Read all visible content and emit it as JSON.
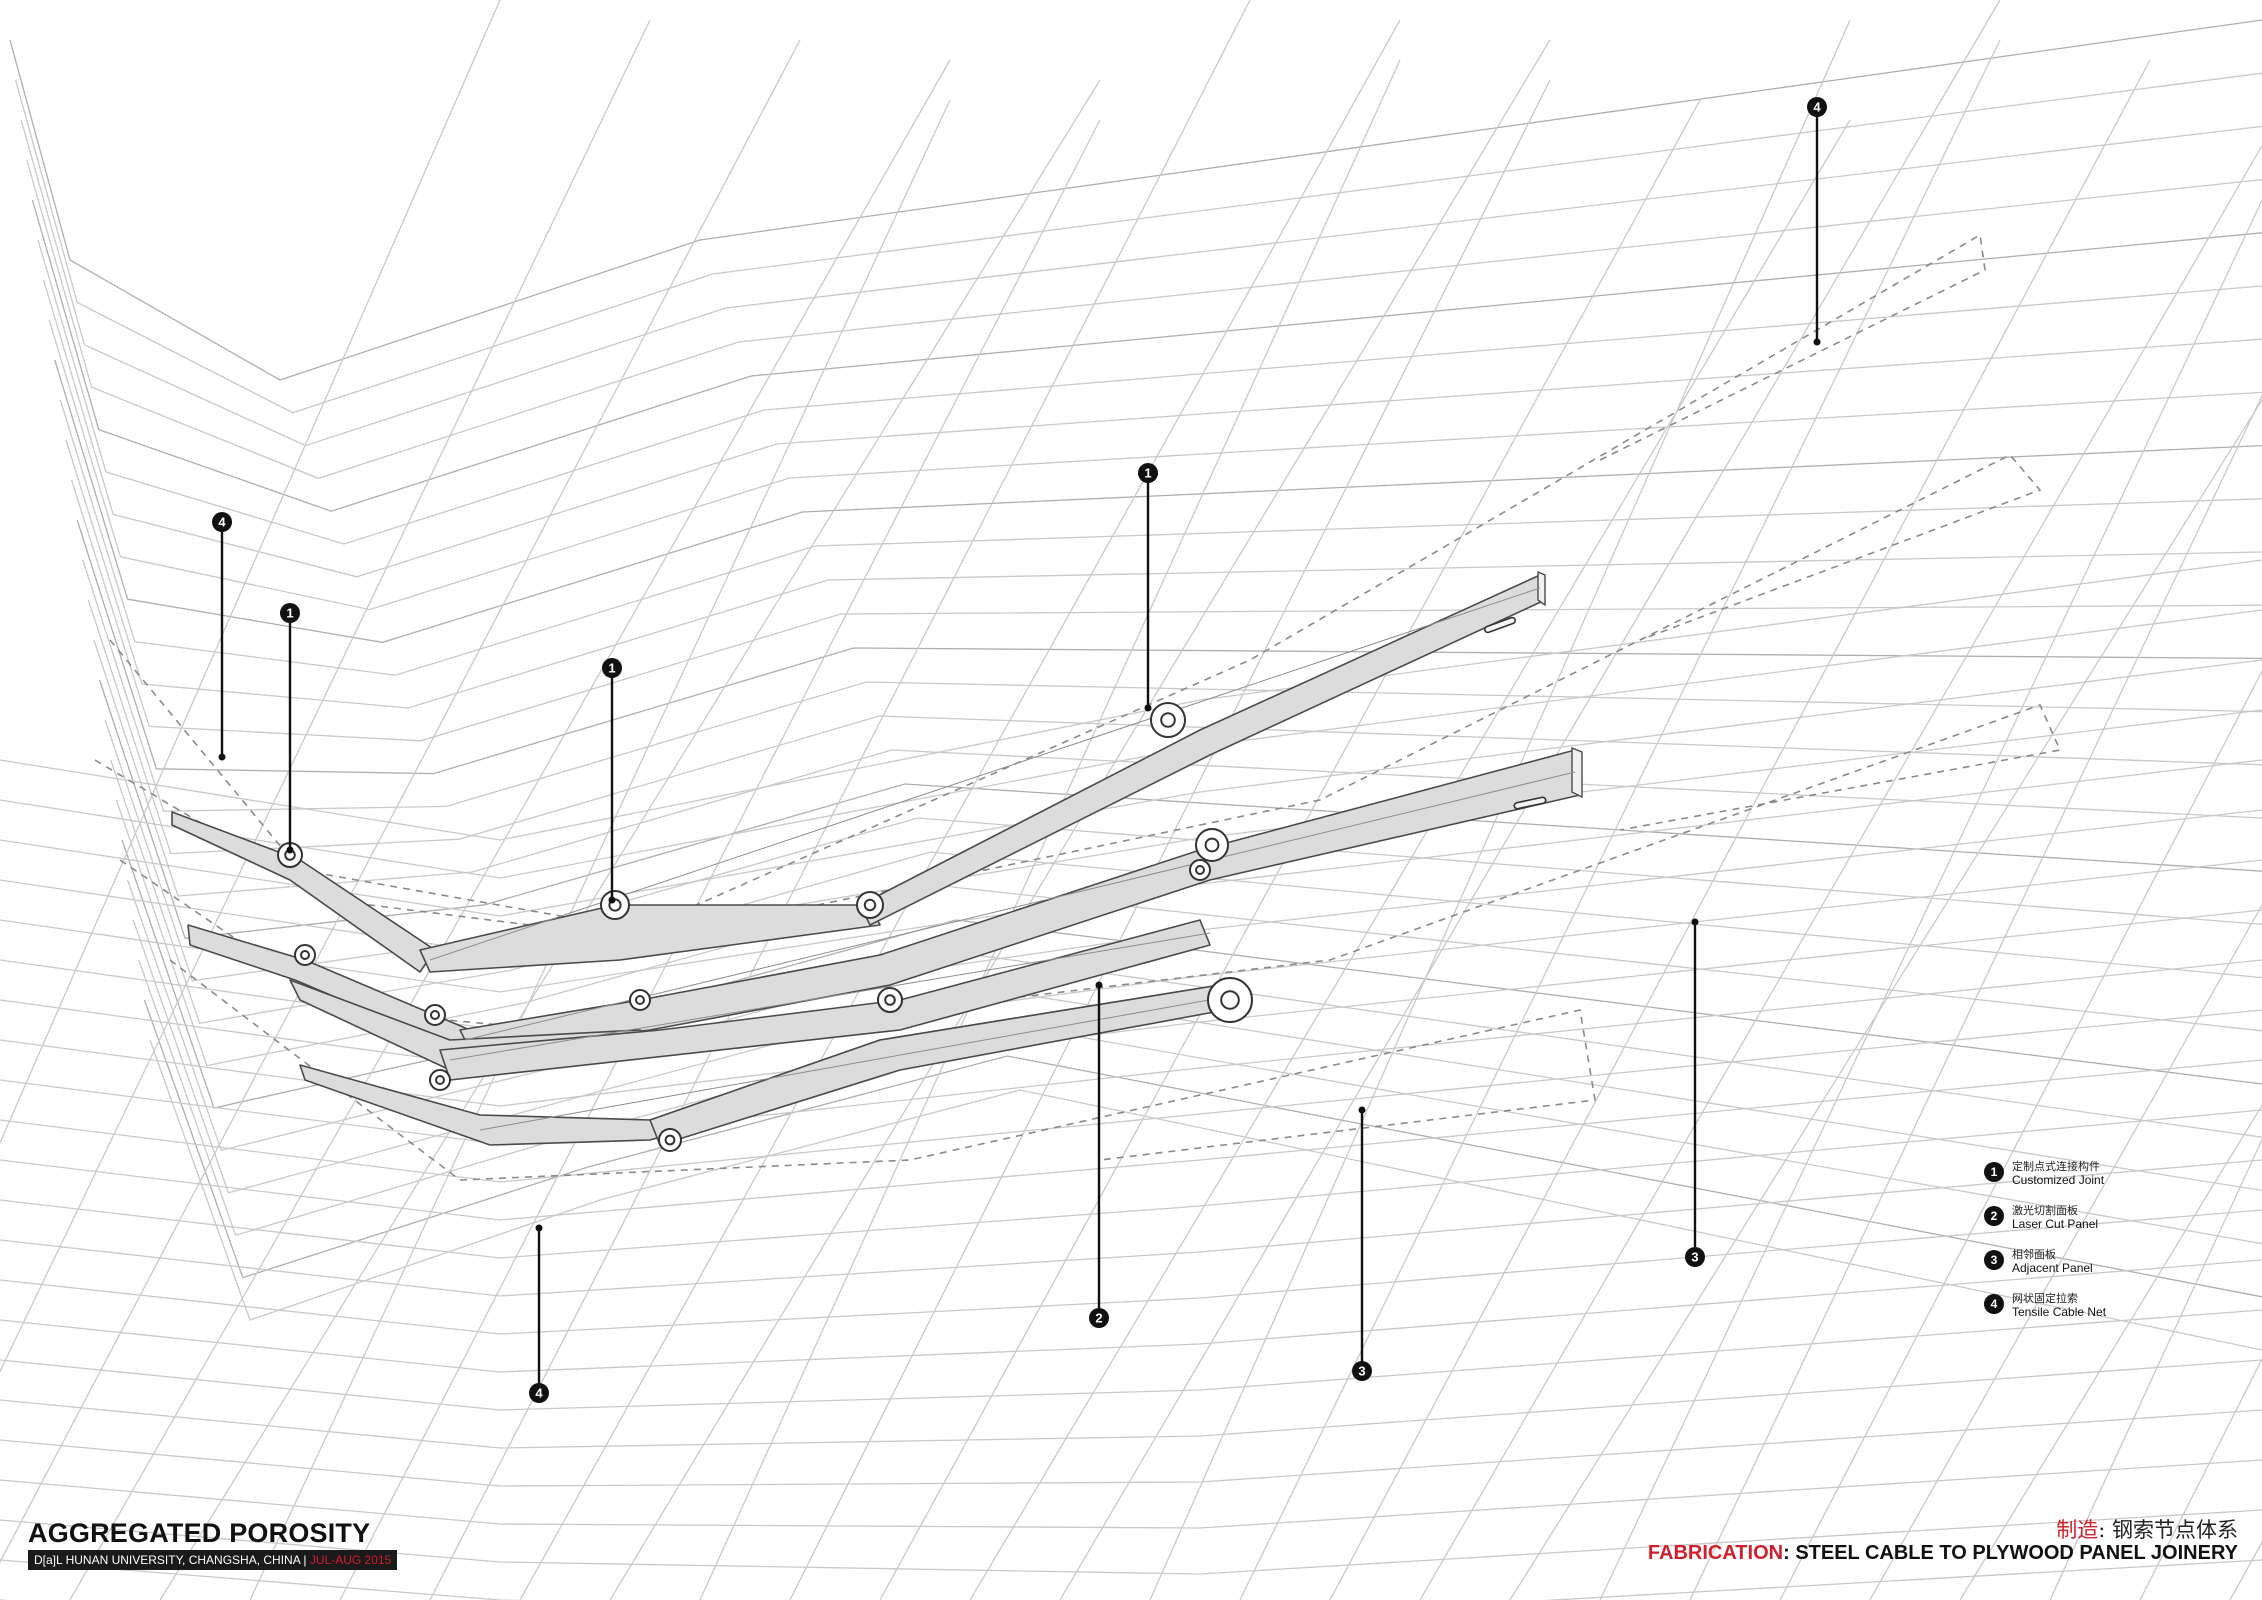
{
  "title": "AGGREGATED POROSITY",
  "subtitle": "D[a]L HUNAN UNIVERSITY, CHANGSHA, CHINA |",
  "subtitle_date": "JUL-AUG 2015",
  "footer": {
    "cn_label": "制造",
    "cn_sep": ":",
    "cn_text": " 钢索节点体系",
    "en_label": "FABRICATION",
    "en_sep": ":",
    "en_text": " STEEL CABLE TO PLYWOOD PANEL JOINERY"
  },
  "legend": [
    {
      "num": "1",
      "cn": "定制点式连接构件",
      "en": "Customized Joint"
    },
    {
      "num": "2",
      "cn": "激光切割面板",
      "en": "Laser Cut Panel"
    },
    {
      "num": "3",
      "cn": "相邻面板",
      "en": "Adjacent Panel"
    },
    {
      "num": "4",
      "cn": "网状固定拉索",
      "en": "Tensile Cable Net"
    }
  ],
  "callouts": [
    "4",
    "1",
    "1",
    "1",
    "4",
    "2",
    "3",
    "3",
    "4"
  ],
  "colors": {
    "accent": "#d0202b",
    "panel": "#dcdcdc",
    "net": "#c9c9c9"
  }
}
